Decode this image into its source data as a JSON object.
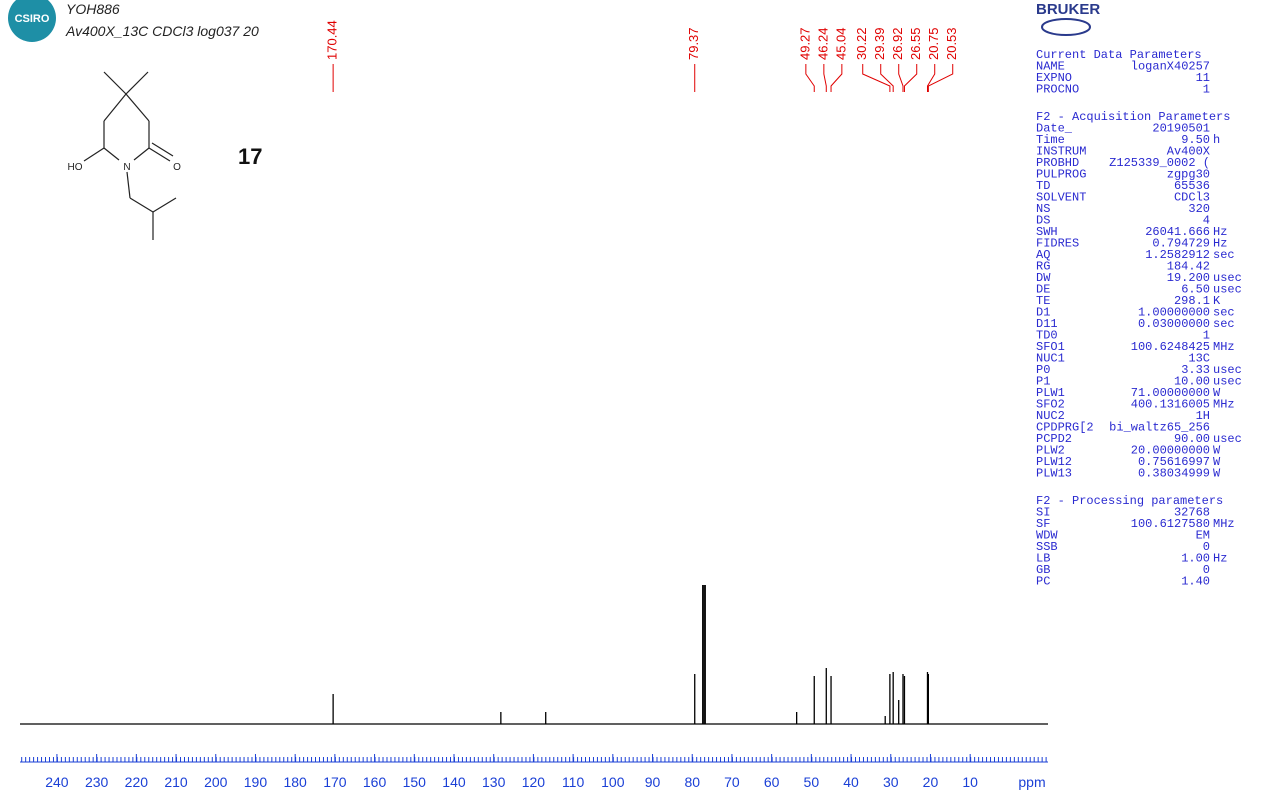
{
  "header": {
    "logo": "CSIRO",
    "sample": "YOH886",
    "experiment": "Av400X_13C CDCl3 log037 20"
  },
  "compound_label": "17",
  "structure": {
    "atoms": [
      "HO",
      "N",
      "O"
    ]
  },
  "brand": "BRUKER",
  "parameters": [
    {
      "title": "Current Data Parameters",
      "rows": [
        [
          "NAME",
          "loganX40257"
        ],
        [
          "EXPNO",
          "11"
        ],
        [
          "PROCNO",
          "1"
        ]
      ]
    },
    {
      "title": "F2 - Acquisition Parameters",
      "rows": [
        [
          "Date_",
          "20190501"
        ],
        [
          "Time",
          "9.50",
          "h"
        ],
        [
          "INSTRUM",
          "Av400X"
        ],
        [
          "PROBHD",
          "Z125339_0002 ("
        ],
        [
          "PULPROG",
          "zgpg30"
        ],
        [
          "TD",
          "65536"
        ],
        [
          "SOLVENT",
          "CDCl3"
        ],
        [
          "NS",
          "320"
        ],
        [
          "DS",
          "4"
        ],
        [
          "SWH",
          "26041.666",
          "Hz"
        ],
        [
          "FIDRES",
          "0.794729",
          "Hz"
        ],
        [
          "AQ",
          "1.2582912",
          "sec"
        ],
        [
          "RG",
          "184.42"
        ],
        [
          "DW",
          "19.200",
          "usec"
        ],
        [
          "DE",
          "6.50",
          "usec"
        ],
        [
          "TE",
          "298.1",
          "K"
        ],
        [
          "D1",
          "1.00000000",
          "sec"
        ],
        [
          "D11",
          "0.03000000",
          "sec"
        ],
        [
          "TD0",
          "1"
        ],
        [
          "SFO1",
          "100.6248425",
          "MHz"
        ],
        [
          "NUC1",
          "13C"
        ],
        [
          "P0",
          "3.33",
          "usec"
        ],
        [
          "P1",
          "10.00",
          "usec"
        ],
        [
          "PLW1",
          "71.00000000",
          "W"
        ],
        [
          "SFO2",
          "400.1316005",
          "MHz"
        ],
        [
          "NUC2",
          "1H"
        ],
        [
          "CPDPRG[2",
          "bi_waltz65_256"
        ],
        [
          "PCPD2",
          "90.00",
          "usec"
        ],
        [
          "PLW2",
          "20.00000000",
          "W"
        ],
        [
          "PLW12",
          "0.75616997",
          "W"
        ],
        [
          "PLW13",
          "0.38034999",
          "W"
        ]
      ]
    },
    {
      "title": "F2 - Processing parameters",
      "rows": [
        [
          "SI",
          "32768"
        ],
        [
          "SF",
          "100.6127580",
          "MHz"
        ],
        [
          "WDW",
          "EM"
        ],
        [
          "SSB",
          "0"
        ],
        [
          "LB",
          "1.00",
          "Hz"
        ],
        [
          "GB",
          "0"
        ],
        [
          "PC",
          "1.40"
        ]
      ]
    }
  ],
  "chart_data": {
    "type": "spectrum",
    "x_label": "ppm",
    "xlim": [
      249.3,
      -9.6
    ],
    "xticks": [
      240,
      230,
      220,
      210,
      200,
      190,
      180,
      170,
      160,
      150,
      140,
      130,
      120,
      110,
      100,
      90,
      80,
      70,
      60,
      50,
      40,
      30,
      20,
      10
    ],
    "ylim": [
      0,
      140
    ],
    "label_color": "#e00000",
    "axis_color": "#1a3fd6",
    "series": [
      {
        "color": "#000000",
        "x": [
          170.44,
          79.37,
          49.27,
          46.24,
          45.04,
          30.22,
          29.39,
          26.92,
          26.55,
          20.75,
          20.53
        ],
        "values": [
          30,
          50,
          48,
          56,
          48,
          50,
          52,
          50,
          48,
          52,
          50
        ]
      },
      {
        "color": "#000000",
        "x": [
          128.2,
          116.9,
          77.36,
          77.04,
          76.72,
          53.7,
          31.4,
          28.0
        ],
        "values": [
          12,
          12,
          139,
          139,
          139,
          12,
          8,
          24
        ]
      }
    ]
  }
}
